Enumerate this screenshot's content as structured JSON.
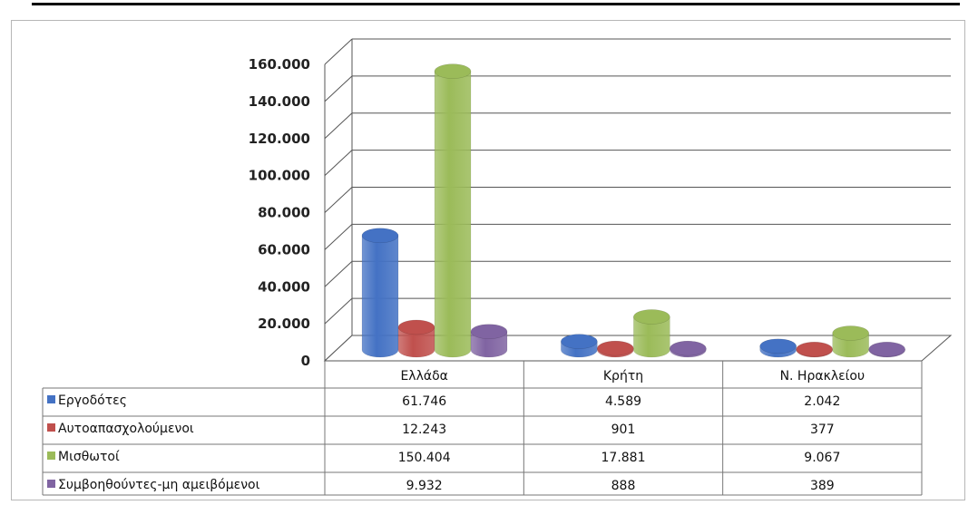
{
  "chart_data": {
    "type": "bar",
    "categories": [
      "Ελλάδα",
      "Κρήτη",
      "Ν. Ηρακλείου"
    ],
    "series": [
      {
        "name": "Εργοδότες",
        "values": [
          61746,
          4589,
          2042
        ],
        "labels": [
          "61.746",
          "4.589",
          "2.042"
        ],
        "color": "#4472c4"
      },
      {
        "name": "Αυτοαπασχολούμενοι",
        "values": [
          12243,
          901,
          377
        ],
        "labels": [
          "12.243",
          "901",
          "377"
        ],
        "color": "#c0504d"
      },
      {
        "name": "Μισθωτοί",
        "values": [
          150404,
          17881,
          9067
        ],
        "labels": [
          "150.404",
          "17.881",
          "9.067"
        ],
        "color": "#9bbb59"
      },
      {
        "name": "Συμβοηθούντες-μη αμειβόμενοι",
        "values": [
          9932,
          888,
          389
        ],
        "labels": [
          "9.932",
          "888",
          "389"
        ],
        "color": "#8064a2"
      }
    ],
    "ylim": [
      0,
      160000
    ],
    "yticks": [
      0,
      20000,
      40000,
      60000,
      80000,
      100000,
      120000,
      140000,
      160000
    ],
    "ytick_labels": [
      "0",
      "20.000",
      "40.000",
      "60.000",
      "80.000",
      "100.000",
      "120.000",
      "140.000",
      "160.000"
    ],
    "grid": true,
    "legend": "data-table",
    "style": "3d-cylinder"
  }
}
